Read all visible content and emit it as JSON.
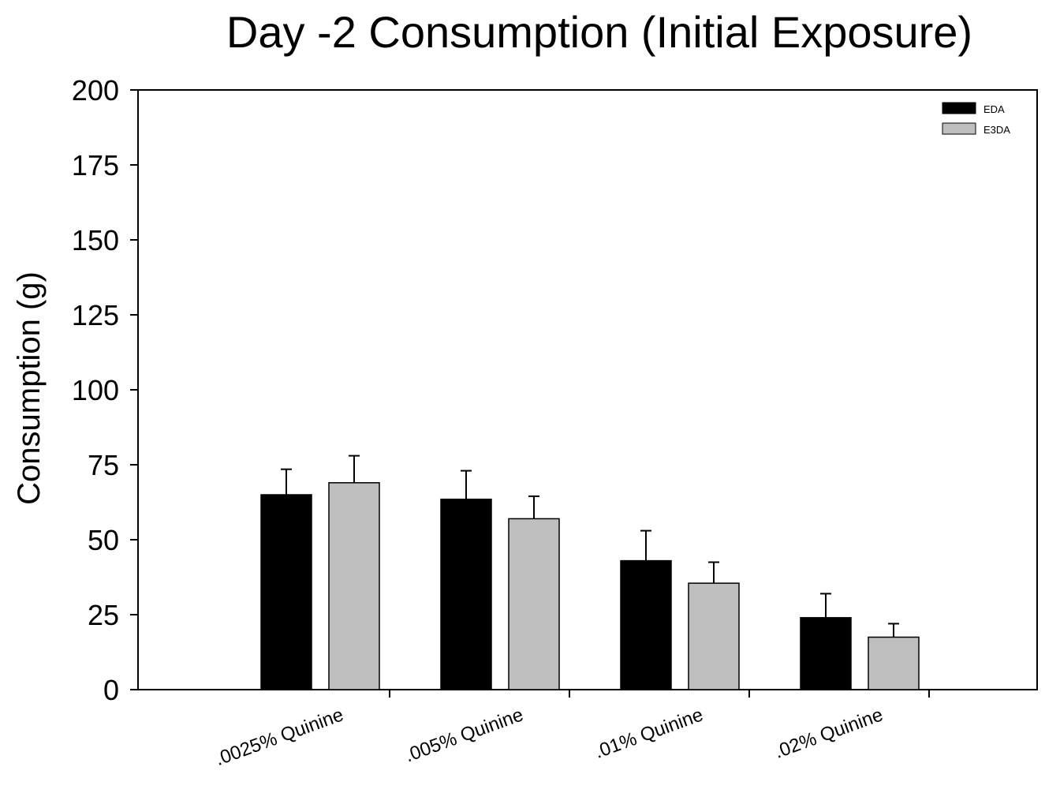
{
  "chart_data": {
    "type": "bar",
    "title": "Day -2 Consumption (Initial Exposure)",
    "xlabel": "",
    "ylabel": "Consumption (g)",
    "ylim": [
      0,
      200
    ],
    "yticks": [
      0,
      25,
      50,
      75,
      100,
      125,
      150,
      175,
      200
    ],
    "categories": [
      ".0025% Quinine",
      ".005% Quinine",
      ".01% Quinine",
      ".02% Quinine"
    ],
    "series": [
      {
        "name": "EDA",
        "color": "#000000",
        "values": [
          65,
          63.5,
          43,
          24
        ],
        "errors": [
          8.5,
          9.5,
          10,
          8
        ]
      },
      {
        "name": "E3DA",
        "color": "#bfbfbf",
        "values": [
          69,
          57,
          35.5,
          17.5
        ],
        "errors": [
          9,
          7.5,
          7,
          4.5
        ]
      }
    ],
    "grid": false,
    "legend_position": "top-right",
    "error_bars": "upper"
  }
}
